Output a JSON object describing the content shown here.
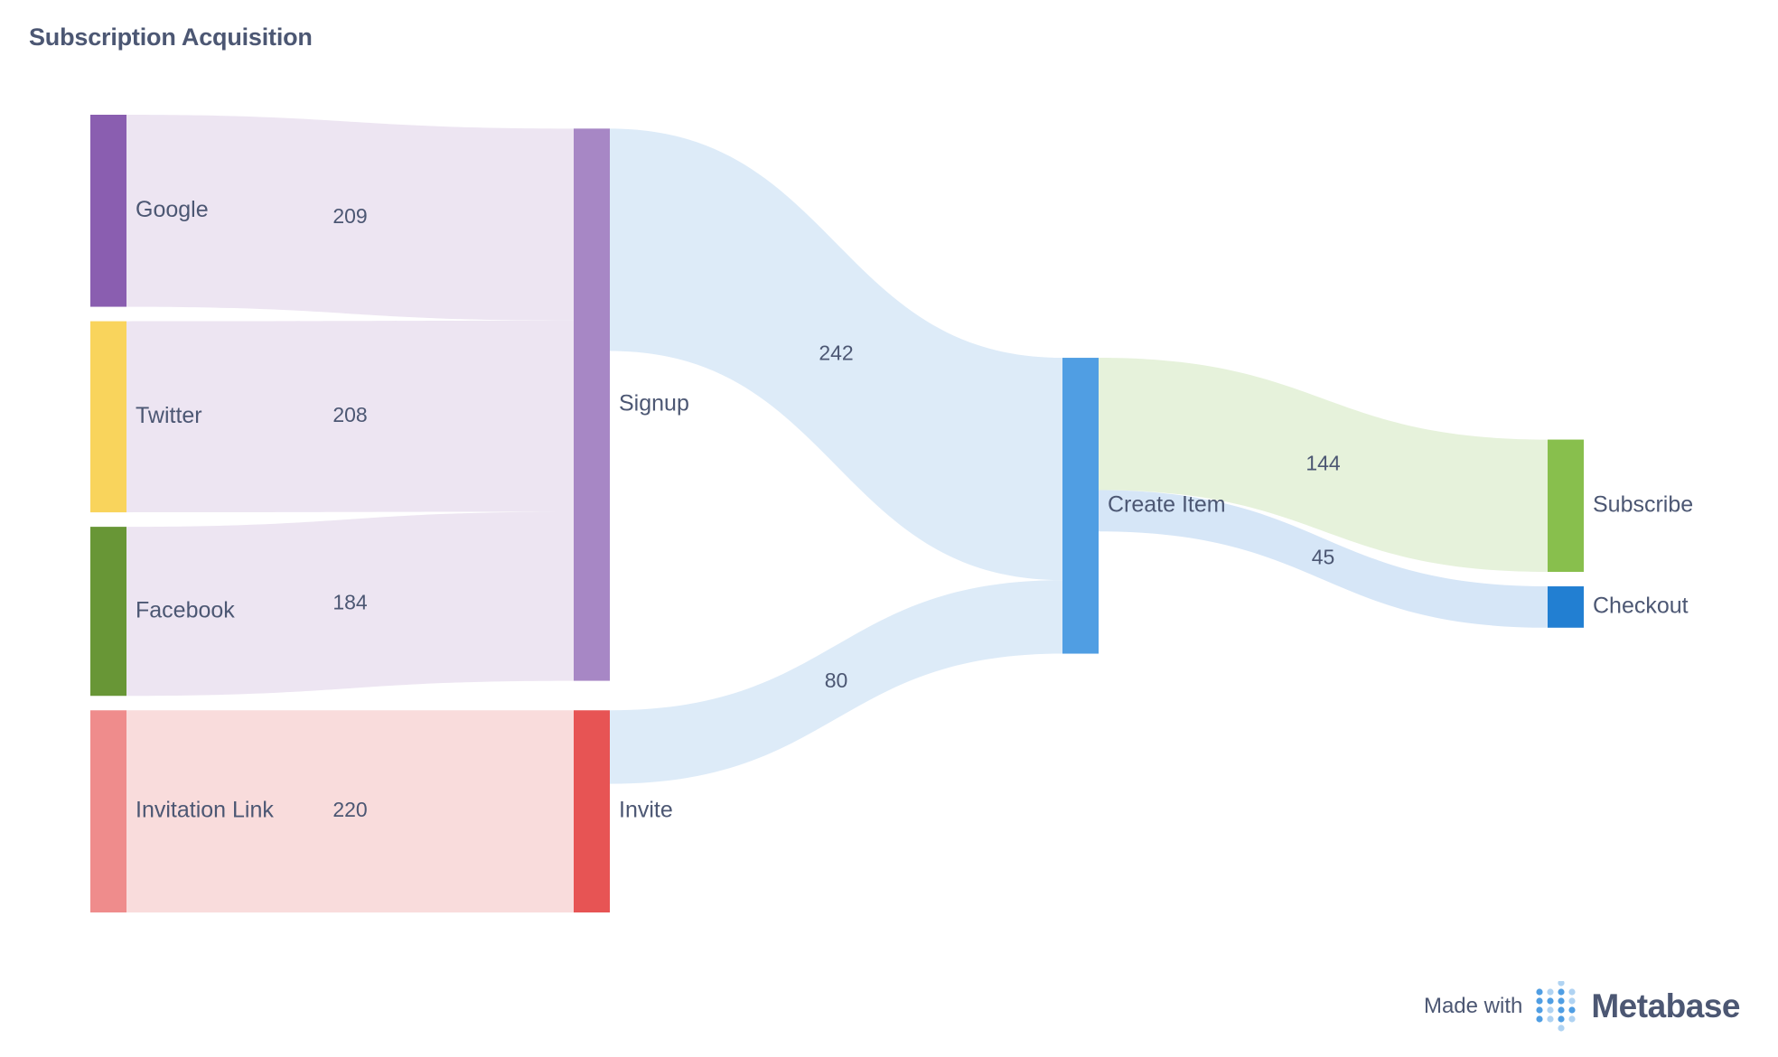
{
  "title": "Subscription Acquisition",
  "footer": {
    "made_with": "Made with",
    "brand": "Metabase"
  },
  "chart_data": {
    "type": "sankey",
    "nodes": [
      {
        "id": "google",
        "label": "Google",
        "color": "#8a5eb0"
      },
      {
        "id": "twitter",
        "label": "Twitter",
        "color": "#f9d45c"
      },
      {
        "id": "facebook",
        "label": "Facebook",
        "color": "#689636"
      },
      {
        "id": "invitation",
        "label": "Invitation Link",
        "color": "#ef8c8c"
      },
      {
        "id": "signup",
        "label": "Signup",
        "color": "#a787c5"
      },
      {
        "id": "invite",
        "label": "Invite",
        "color": "#e75454"
      },
      {
        "id": "create",
        "label": "Create Item",
        "color": "#509ee3"
      },
      {
        "id": "subscribe",
        "label": "Subscribe",
        "color": "#88bf4d"
      },
      {
        "id": "checkout",
        "label": "Checkout",
        "color": "#227fd2"
      }
    ],
    "links": [
      {
        "source": "google",
        "target": "signup",
        "value": 209,
        "color": "#ede5f2"
      },
      {
        "source": "twitter",
        "target": "signup",
        "value": 208,
        "color": "#ede5f2"
      },
      {
        "source": "facebook",
        "target": "signup",
        "value": 184,
        "color": "#ede5f2"
      },
      {
        "source": "invitation",
        "target": "invite",
        "value": 220,
        "color": "#f9dcdc"
      },
      {
        "source": "signup",
        "target": "create",
        "value": 242,
        "color": "#ddebf8"
      },
      {
        "source": "invite",
        "target": "create",
        "value": 80,
        "color": "#ddebf8"
      },
      {
        "source": "create",
        "target": "subscribe",
        "value": 144,
        "color": "#e6f2db"
      },
      {
        "source": "create",
        "target": "checkout",
        "value": 45,
        "color": "#d6e6f7"
      }
    ]
  }
}
